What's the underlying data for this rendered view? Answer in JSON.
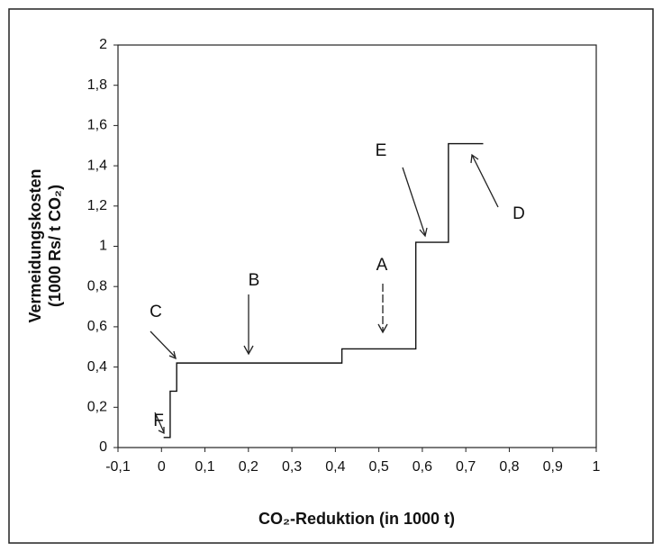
{
  "chart_data": {
    "type": "line",
    "xlabel": "CO₂-Reduktion (in 1000 t)",
    "ylabel": [
      "Vermeidungskosten",
      "(1000 Rs/ t CO₂)"
    ],
    "series": [
      {
        "color": "#111111",
        "x": [
          0.005,
          0.02,
          0.02,
          0.035,
          0.035,
          0.415,
          0.415,
          0.585,
          0.585,
          0.66,
          0.66,
          0.74
        ],
        "values": [
          0.05,
          0.05,
          0.28,
          0.28,
          0.42,
          0.42,
          0.49,
          0.49,
          1.02,
          1.02,
          1.51,
          1.51
        ]
      }
    ],
    "xlim": [
      -0.1,
      1
    ],
    "ylim": [
      0,
      2
    ],
    "xticks": [
      {
        "value": -0.1,
        "label": "-0,1"
      },
      0,
      {
        "value": 0.1,
        "label": "0,1"
      },
      {
        "value": 0.2,
        "label": "0,2"
      },
      {
        "value": 0.3,
        "label": "0,3"
      },
      {
        "value": 0.4,
        "label": "0,4"
      },
      {
        "value": 0.5,
        "label": "0,5"
      },
      {
        "value": 0.6,
        "label": "0,6"
      },
      {
        "value": 0.7,
        "label": "0,7"
      },
      {
        "value": 0.8,
        "label": "0,8"
      },
      {
        "value": 0.9,
        "label": "0,9"
      },
      1
    ],
    "yticks": [
      0,
      {
        "value": 0.2,
        "label": "0,2"
      },
      {
        "value": 0.4,
        "label": "0,4"
      },
      {
        "value": 0.6,
        "label": "0,6"
      },
      {
        "value": 0.8,
        "label": "0,8"
      },
      1,
      {
        "value": 1.2,
        "label": "1,2"
      },
      {
        "value": 1.4,
        "label": "1,4"
      },
      {
        "value": 1.6,
        "label": "1,6"
      },
      {
        "value": 1.8,
        "label": "1,8"
      },
      2
    ],
    "annotations": [
      "A",
      "B",
      "C",
      "D",
      "E",
      "F"
    ]
  }
}
